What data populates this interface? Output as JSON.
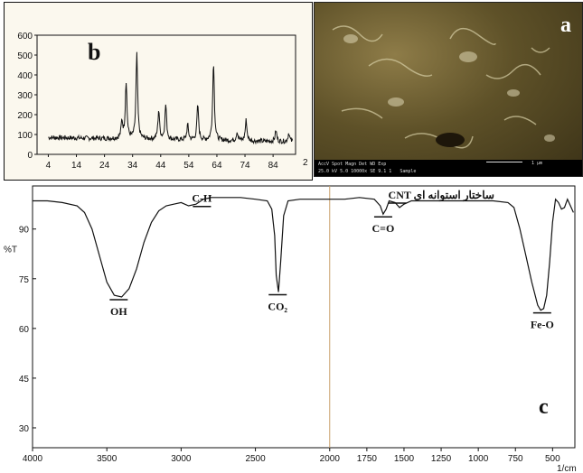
{
  "chart_data": [
    {
      "panel": "b",
      "type": "line",
      "xlim": [
        0,
        92
      ],
      "ylim": [
        0,
        600
      ],
      "x_ticks": [
        4,
        14,
        24,
        34,
        44,
        54,
        64,
        74,
        84
      ],
      "y_ticks": [
        0,
        100,
        200,
        300,
        400,
        500,
        600
      ],
      "x_tick_labels": [
        "4",
        "14",
        "24",
        "34",
        "44",
        "54",
        "64",
        "74",
        "84"
      ],
      "y_tick_labels": [
        "0",
        "100",
        "200",
        "300",
        "400",
        "500",
        "600"
      ],
      "xlabel": "",
      "ylabel": "",
      "title": "",
      "grid": false,
      "edge_label": "2",
      "baseline": 85,
      "peaks": [
        {
          "x": 30.2,
          "y": 170
        },
        {
          "x": 31.7,
          "y": 370
        },
        {
          "x": 35.5,
          "y": 510
        },
        {
          "x": 43.3,
          "y": 230
        },
        {
          "x": 45.8,
          "y": 260
        },
        {
          "x": 53.6,
          "y": 160
        },
        {
          "x": 57.2,
          "y": 260
        },
        {
          "x": 62.8,
          "y": 480
        },
        {
          "x": 71.2,
          "y": 130
        },
        {
          "x": 74.4,
          "y": 190
        },
        {
          "x": 85.0,
          "y": 140
        },
        {
          "x": 89.6,
          "y": 130
        }
      ]
    },
    {
      "panel": "c",
      "type": "line",
      "xlim": [
        4000,
        350
      ],
      "ylim": [
        24,
        103
      ],
      "x_ticks": [
        4000,
        3500,
        3000,
        2500,
        2000,
        1750,
        1500,
        1250,
        1000,
        750,
        500
      ],
      "y_ticks": [
        30,
        45,
        60,
        75,
        90
      ],
      "x_tick_labels": [
        "4000",
        "3500",
        "3000",
        "2500",
        "2000",
        "1750",
        "1500",
        "1250",
        "1000",
        "750",
        "500"
      ],
      "y_tick_labels": [
        "30",
        "45",
        "60",
        "75",
        "90"
      ],
      "xlabel": "1/cm",
      "ylabel": "%T",
      "title": "",
      "grid": false,
      "x": [
        4000,
        3900,
        3800,
        3700,
        3650,
        3600,
        3550,
        3500,
        3450,
        3400,
        3350,
        3300,
        3250,
        3200,
        3150,
        3100,
        3050,
        3000,
        2950,
        2900,
        2850,
        2800,
        2700,
        2600,
        2500,
        2420,
        2390,
        2370,
        2360,
        2345,
        2330,
        2310,
        2280,
        2200,
        2000,
        1900,
        1800,
        1700,
        1660,
        1640,
        1620,
        1600,
        1560,
        1530,
        1500,
        1450,
        1400,
        1200,
        1000,
        900,
        800,
        760,
        720,
        680,
        640,
        600,
        580,
        560,
        540,
        520,
        500,
        480,
        460,
        440,
        420,
        400,
        380,
        360
      ],
      "y": [
        98.5,
        98.5,
        98.0,
        97.0,
        95.0,
        90.0,
        82.0,
        74.0,
        70.0,
        69.5,
        72.0,
        78.0,
        86.0,
        92.0,
        95.5,
        97.0,
        97.5,
        98.0,
        97.0,
        97.5,
        99.0,
        99.5,
        99.5,
        99.5,
        99.0,
        98.5,
        96.0,
        88.0,
        76.0,
        71.0,
        80.0,
        94.0,
        98.5,
        99.0,
        99.0,
        99.0,
        99.5,
        99.0,
        97.0,
        94.5,
        96.0,
        98.5,
        98.0,
        96.5,
        97.5,
        98.5,
        98.5,
        98.5,
        98.5,
        98.5,
        98.0,
        96.5,
        90.0,
        82.0,
        74.0,
        67.0,
        65.5,
        66.0,
        70.0,
        80.0,
        92.0,
        99.0,
        98.0,
        96.0,
        96.5,
        99.0,
        97.0,
        95.0
      ],
      "annotations": [
        {
          "text": "OH",
          "x": 3420,
          "y": 69.5
        },
        {
          "text": "C-H",
          "x": 2860,
          "y": 96.0
        },
        {
          "text": "CO₂",
          "x": 2350,
          "y": 71.0
        },
        {
          "text": "C=O",
          "x": 1640,
          "y": 94.5
        },
        {
          "text": "CNT ساختار استوانه ای",
          "x": 1545,
          "y": 97.0
        },
        {
          "text": "Fe-O",
          "x": 570,
          "y": 65.5
        }
      ]
    }
  ],
  "panels": {
    "b": "b",
    "a": "a",
    "c": "c"
  },
  "sem_info": {
    "line1": "AccV  Spot Magn   Det  WD  Exp",
    "line2": "25.0 kV 5.0  10000x  SE  9.1  1",
    "scale": "1 µm",
    "sample": "Sample"
  },
  "colors": {
    "line": "#111111",
    "grid_center": "#c9a06a",
    "panel_bg": "#fbf8ee"
  }
}
